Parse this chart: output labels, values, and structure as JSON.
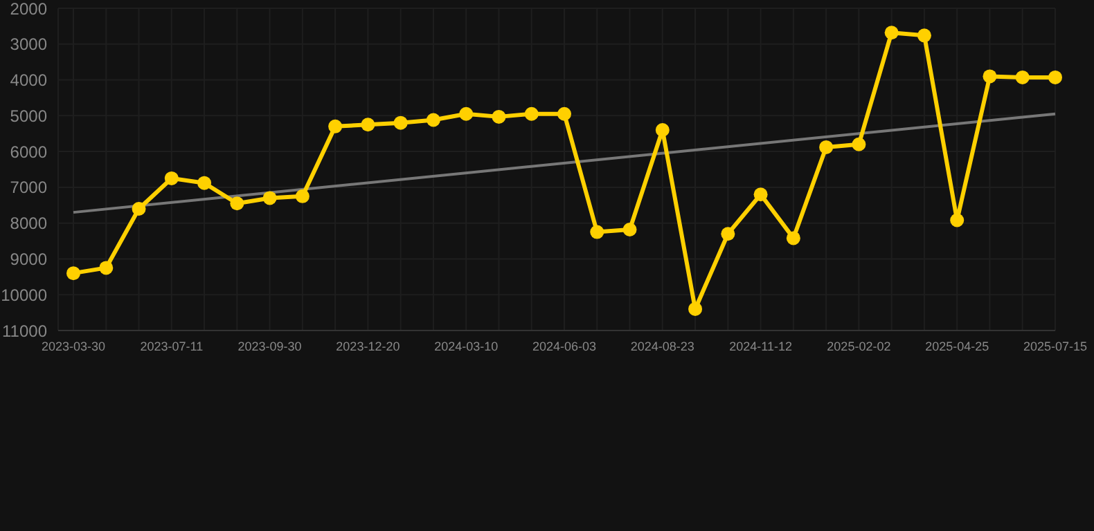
{
  "chart_data": {
    "type": "line",
    "categories": [
      "2023-03-30",
      null,
      null,
      "2023-07-11",
      null,
      null,
      "2023-09-30",
      null,
      null,
      "2023-12-20",
      null,
      null,
      "2024-03-10",
      null,
      null,
      "2024-06-03",
      null,
      null,
      "2024-08-23",
      null,
      null,
      "2024-11-12",
      null,
      null,
      "2025-02-02",
      null,
      null,
      "2025-04-25",
      null,
      null,
      "2025-07-15"
    ],
    "series": [
      {
        "color": "#ffd000",
        "marker": "circle",
        "values": [
          9400,
          9250,
          7600,
          6750,
          6880,
          7450,
          7300,
          7250,
          5300,
          5250,
          5200,
          5120,
          4950,
          5030,
          4950,
          4950,
          8250,
          8180,
          5400,
          10400,
          8300,
          7200,
          8420,
          5880,
          5800,
          2680,
          2760,
          7920,
          3900,
          3930,
          3930
        ]
      },
      {
        "color": "#777777",
        "marker": "none",
        "values": [
          7700,
          null,
          null,
          null,
          null,
          null,
          null,
          null,
          null,
          null,
          null,
          null,
          null,
          null,
          null,
          null,
          null,
          null,
          null,
          null,
          null,
          null,
          null,
          null,
          null,
          null,
          null,
          null,
          null,
          null,
          4950
        ]
      }
    ],
    "ylim": [
      11000,
      2000
    ],
    "yticks": [
      2000,
      3000,
      4000,
      5000,
      6000,
      7000,
      8000,
      9000,
      10000,
      11000
    ],
    "grid": true,
    "line_style": "solid"
  }
}
